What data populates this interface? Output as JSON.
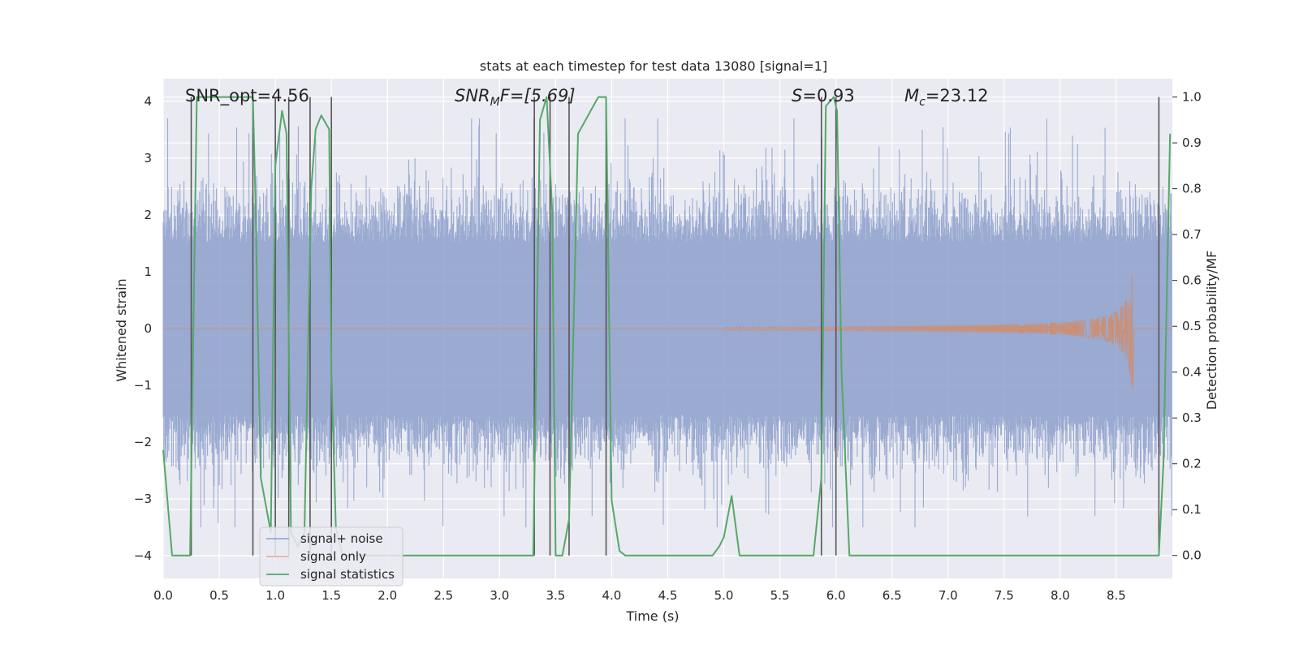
{
  "chart_data": {
    "type": "line",
    "title": "stats at each timestep for test data 13080 [signal=1]",
    "xlabel": "Time (s)",
    "ylabel": "Whitened strain",
    "ylabel_right": "Detection probability/MF",
    "xlim": [
      0.0,
      9.0
    ],
    "ylim": [
      -4.4,
      4.4
    ],
    "ylim_right": [
      -0.05,
      1.04
    ],
    "x_ticks": [
      "0.0",
      "0.5",
      "1.0",
      "1.5",
      "2.0",
      "2.5",
      "3.0",
      "3.5",
      "4.0",
      "4.5",
      "5.0",
      "5.5",
      "6.0",
      "6.5",
      "7.0",
      "7.5",
      "8.0",
      "8.5"
    ],
    "y_ticks": [
      "−4",
      "−3",
      "−2",
      "−1",
      "0",
      "1",
      "2",
      "3",
      "4"
    ],
    "y_ticks_right": [
      "0.0",
      "0.1",
      "0.2",
      "0.3",
      "0.4",
      "0.5",
      "0.6",
      "0.7",
      "0.8",
      "0.9",
      "1.0"
    ],
    "grid": true,
    "legend_position": "lower-left",
    "legend": [
      "signal+ noise",
      "signal only",
      "signal statistics"
    ],
    "annotations": {
      "snr_opt": "SNR_opt=4.56",
      "snr_mf_sym": "SNR",
      "snr_mf_sub": "M",
      "snr_mf_rest": "F=[5.69]",
      "s_sym": "S",
      "s_rest": "=0.93",
      "mc_sym": "M",
      "mc_sub": "c",
      "mc_rest": "=23.12"
    },
    "colors": {
      "signal_noise": "#8c9fcb",
      "signal_only": "#dd8452",
      "statistics": "#55a868",
      "vlines": "#555555",
      "background": "#eaeaf2",
      "grid": "#ffffff"
    },
    "noise_envelope": {
      "typical_abs": 1.6,
      "peak_range": [
        -3.5,
        3.7
      ]
    },
    "signal_only": {
      "description_units": "whitened strain",
      "start_time": 5.0,
      "merger_time": 8.65,
      "peak_amplitude": 1.05
    },
    "series": [
      {
        "name": "signal statistics",
        "axis": "right",
        "x": [
          0.0,
          0.08,
          0.24,
          0.3,
          0.8,
          0.82,
          0.87,
          0.96,
          1.0,
          1.06,
          1.1,
          1.14,
          1.2,
          1.26,
          1.32,
          1.36,
          1.41,
          1.48,
          1.5,
          1.54,
          1.6,
          3.3,
          3.36,
          3.42,
          3.47,
          3.5,
          3.56,
          3.62,
          3.7,
          3.88,
          3.95,
          4.0,
          4.07,
          4.12,
          4.2,
          4.9,
          4.96,
          5.0,
          5.07,
          5.14,
          5.8,
          5.87,
          5.91,
          5.98,
          6.01,
          6.05,
          6.12,
          8.4,
          8.5,
          8.88,
          8.92,
          8.98
        ],
        "values": [
          0.23,
          0.0,
          0.0,
          1.0,
          1.0,
          0.8,
          0.17,
          0.05,
          0.85,
          0.97,
          0.92,
          0.05,
          0.02,
          0.05,
          0.8,
          0.93,
          0.96,
          0.93,
          0.4,
          0.06,
          0.0,
          0.0,
          0.95,
          1.0,
          0.75,
          0.0,
          0.0,
          0.08,
          0.92,
          1.0,
          1.0,
          0.12,
          0.01,
          0.0,
          0.0,
          0.0,
          0.02,
          0.04,
          0.13,
          0.0,
          0.0,
          0.17,
          0.98,
          1.0,
          0.97,
          0.4,
          0.0,
          0.0,
          0.0,
          0.0,
          0.2,
          0.92
        ]
      }
    ],
    "vertical_lines": [
      0.25,
      0.8,
      1.0,
      1.12,
      1.31,
      1.5,
      3.31,
      3.45,
      3.62,
      3.95,
      5.87,
      6.0,
      8.88
    ]
  }
}
